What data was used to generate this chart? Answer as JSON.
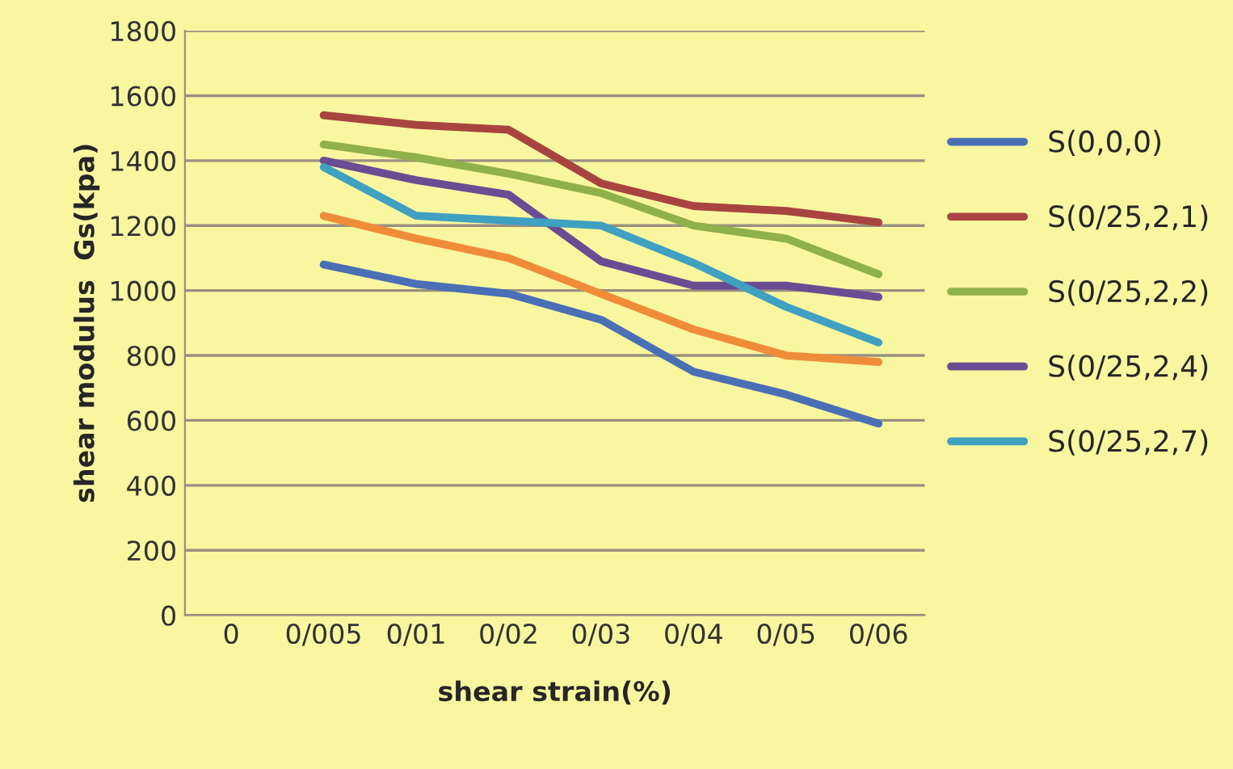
{
  "chart_data": {
    "type": "line",
    "xlabel": "shear strain(%)",
    "ylabel": "shear modulus  Gs(kpa)",
    "categories": [
      "0",
      "0/005",
      "0/01",
      "0/02",
      "0/03",
      "0/04",
      "0/05",
      "0/06"
    ],
    "series": [
      {
        "name": "S(0,0,0)",
        "color": "#4a6fb5",
        "values": [
          null,
          1080,
          1020,
          990,
          910,
          750,
          680,
          590
        ]
      },
      {
        "name": "S(0/25,2,1)",
        "color": "#a8443f",
        "values": [
          null,
          1540,
          1510,
          1495,
          1330,
          1260,
          1245,
          1210
        ]
      },
      {
        "name": "S(0/25,2,2)",
        "color": "#8fb04a",
        "values": [
          null,
          1450,
          1410,
          1360,
          1300,
          1200,
          1160,
          1050
        ]
      },
      {
        "name": "S(0/25,2,4)",
        "color": "#6a4c93",
        "values": [
          null,
          1400,
          1340,
          1295,
          1090,
          1015,
          1015,
          980
        ]
      },
      {
        "name": "S(0/25,2,7)",
        "color": "#3fa0c0",
        "values": [
          null,
          1380,
          1230,
          1215,
          1200,
          1085,
          950,
          840
        ]
      },
      {
        "color": "#ef8c3a",
        "values": [
          null,
          1230,
          1160,
          1100,
          990,
          880,
          800,
          780
        ]
      }
    ],
    "ylim": [
      0,
      1800
    ],
    "yticks": [
      0,
      200,
      400,
      600,
      800,
      1000,
      1200,
      1400,
      1600,
      1800
    ],
    "grid": "y",
    "legend": "right",
    "marker": "none",
    "line_style": "solid"
  }
}
